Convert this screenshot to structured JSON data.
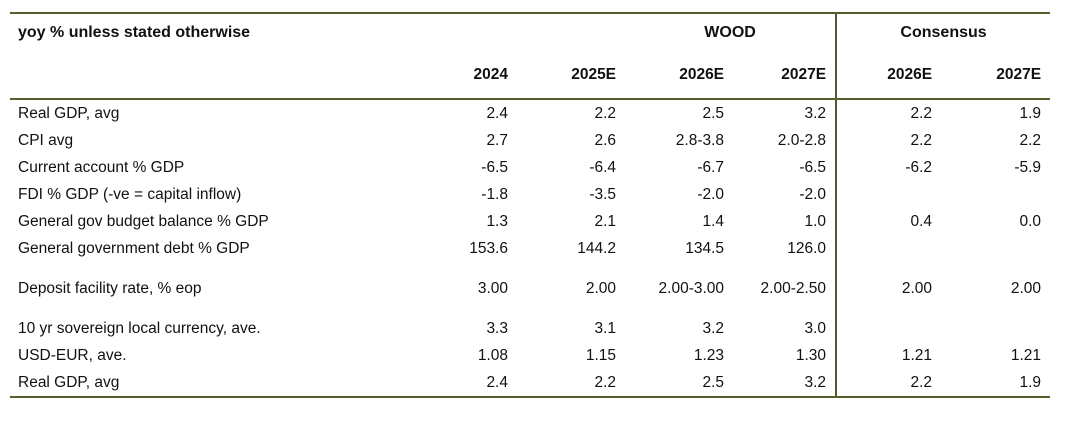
{
  "chart_data": {
    "type": "table",
    "title": "yoy % unless stated otherwise",
    "column_groups": [
      {
        "label": "WOOD",
        "columns": [
          "2024",
          "2025E",
          "2026E",
          "2027E"
        ]
      },
      {
        "label": "Consensus",
        "columns": [
          "2026E",
          "2027E"
        ]
      }
    ],
    "columns": [
      "2024",
      "2025E",
      "2026E",
      "2027E",
      "2026E",
      "2027E"
    ],
    "rows": [
      {
        "label": "Real GDP, avg",
        "values": [
          "2.4",
          "2.2",
          "2.5",
          "3.2",
          "2.2",
          "1.9"
        ],
        "gap": false
      },
      {
        "label": "CPI avg",
        "values": [
          "2.7",
          "2.6",
          "2.8-3.8",
          "2.0-2.8",
          "2.2",
          "2.2"
        ],
        "gap": false
      },
      {
        "label": "Current account % GDP",
        "values": [
          "-6.5",
          "-6.4",
          "-6.7",
          "-6.5",
          "-6.2",
          "-5.9"
        ],
        "gap": false
      },
      {
        "label": "FDI % GDP (-ve = capital inflow)",
        "values": [
          "-1.8",
          "-3.5",
          "-2.0",
          "-2.0",
          "",
          ""
        ],
        "gap": false
      },
      {
        "label": "General gov budget balance % GDP",
        "values": [
          "1.3",
          "2.1",
          "1.4",
          "1.0",
          "0.4",
          "0.0"
        ],
        "gap": false
      },
      {
        "label": "General government debt % GDP",
        "values": [
          "153.6",
          "144.2",
          "134.5",
          "126.0",
          "",
          ""
        ],
        "gap": false
      },
      {
        "label": "Deposit facility rate, % eop",
        "values": [
          "3.00",
          "2.00",
          "2.00-3.00",
          "2.00-2.50",
          "2.00",
          "2.00"
        ],
        "gap": true
      },
      {
        "label": "10 yr sovereign local currency, ave.",
        "values": [
          "3.3",
          "3.1",
          "3.2",
          "3.0",
          "",
          ""
        ],
        "gap": true
      },
      {
        "label": "USD-EUR, ave.",
        "values": [
          "1.08",
          "1.15",
          "1.23",
          "1.30",
          "1.21",
          "1.21"
        ],
        "gap": false
      },
      {
        "label": "Real GDP, avg",
        "values": [
          "2.4",
          "2.2",
          "2.5",
          "3.2",
          "2.2",
          "1.9"
        ],
        "gap": false
      }
    ],
    "layout": {
      "grid": "horizontal rules top/header/bottom, one vertical rule before Consensus group"
    },
    "colors": {
      "rule": "#525d2c",
      "text": "#111111"
    }
  }
}
